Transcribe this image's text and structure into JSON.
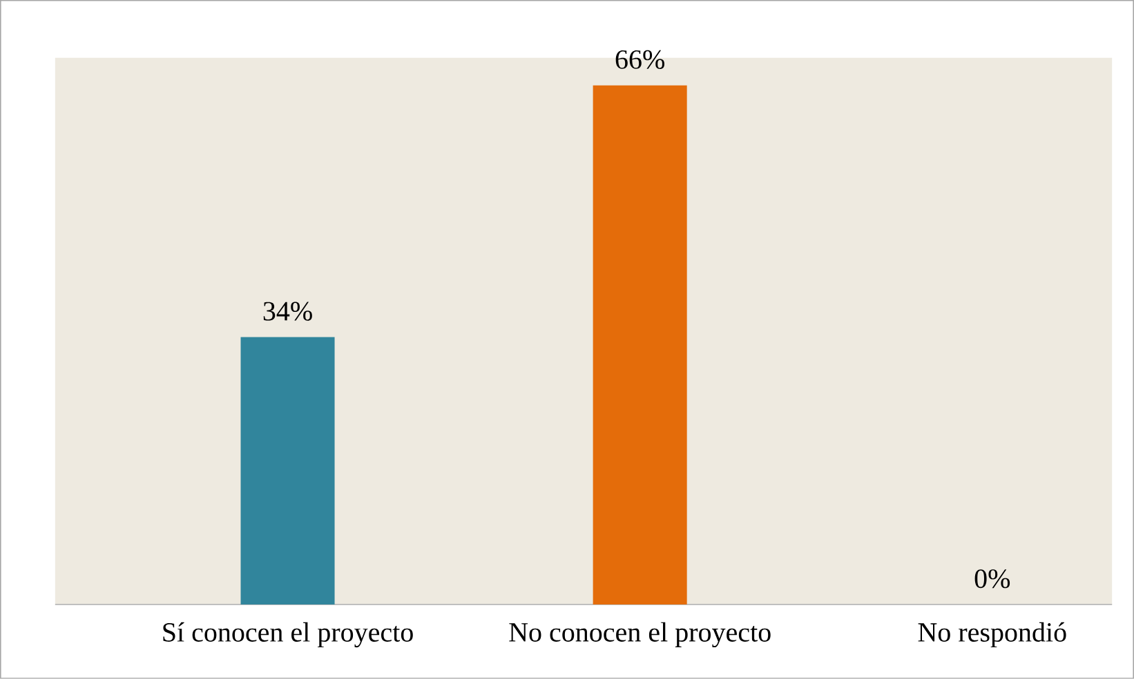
{
  "chart_data": {
    "type": "bar",
    "categories": [
      "Sí conocen el proyecto",
      "No conocen el proyecto",
      "No respondió"
    ],
    "values": [
      34,
      66,
      0
    ],
    "value_labels": [
      "34%",
      "66%",
      "0%"
    ],
    "colors": [
      "#31859c",
      "#e46c0a",
      "#8064a2"
    ]
  }
}
